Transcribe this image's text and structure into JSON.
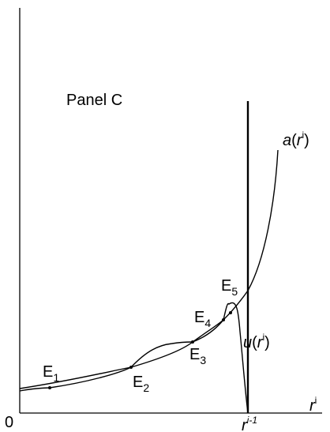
{
  "diagram": {
    "panel_label": "Panel C",
    "origin_label": "0",
    "x_axis_label": {
      "base": "r",
      "sup": "i"
    },
    "vline_label": {
      "base": "r",
      "sup": "i-1"
    },
    "curve_a_label": {
      "func": "a",
      "open": "(",
      "arg": "r",
      "sup": "i",
      "close": ")"
    },
    "curve_u_label": {
      "func": "u",
      "open": "(",
      "arg": "r",
      "sup": "i",
      "close": ")"
    },
    "points": [
      {
        "base": "E",
        "sub": "1"
      },
      {
        "base": "E",
        "sub": "2"
      },
      {
        "base": "E",
        "sub": "3"
      },
      {
        "base": "E",
        "sub": "4"
      },
      {
        "base": "E",
        "sub": "5"
      }
    ]
  }
}
